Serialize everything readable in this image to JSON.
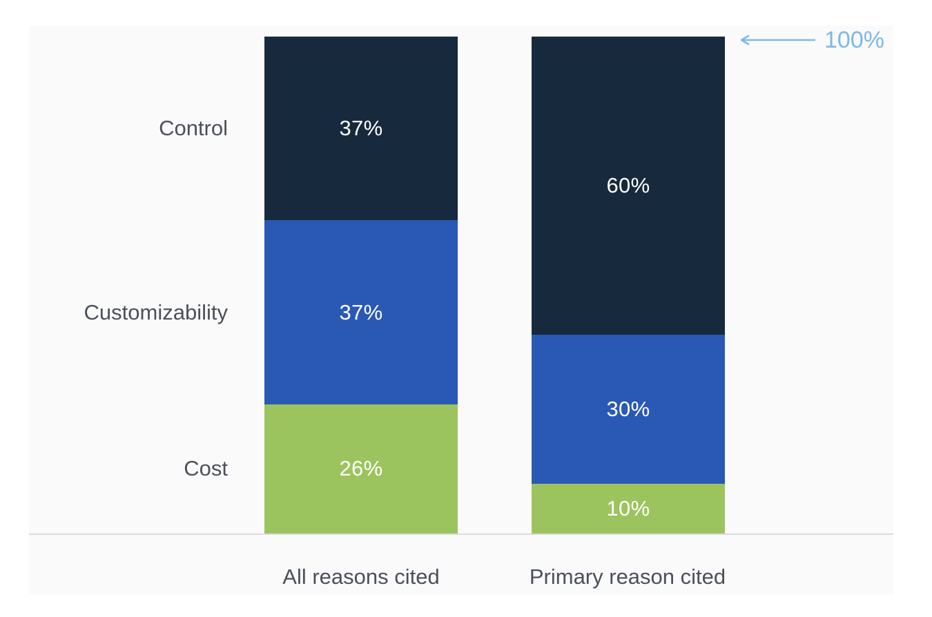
{
  "chart_data": {
    "type": "bar",
    "subtype": "stacked-column-percentage",
    "title": "",
    "xlabel": "",
    "ylabel": "",
    "ylim": [
      0,
      100
    ],
    "unit": "%",
    "grid": false,
    "legend_position": "left-row-labels",
    "categories": [
      "All reasons cited",
      "Primary reason cited"
    ],
    "series": [
      {
        "name": "Control",
        "color": "#17293d",
        "values": [
          37,
          60
        ]
      },
      {
        "name": "Customizability",
        "color": "#2a59b5",
        "values": [
          37,
          30
        ]
      },
      {
        "name": "Cost",
        "color": "#9cc45e",
        "values": [
          26,
          10
        ]
      }
    ],
    "value_labels": [
      [
        "37%",
        "37%",
        "26%"
      ],
      [
        "60%",
        "30%",
        "10%"
      ]
    ],
    "annotation": {
      "text": "100%",
      "color": "#7cb9e8",
      "arrow": "left",
      "points_to": "top of Primary reason cited bar"
    }
  },
  "colors": {
    "panel_background": "#fafafb",
    "page_background": "#ffffff",
    "axis_line": "#d9dadc",
    "label_text": "#4b515a",
    "value_text": "#ffffff"
  }
}
